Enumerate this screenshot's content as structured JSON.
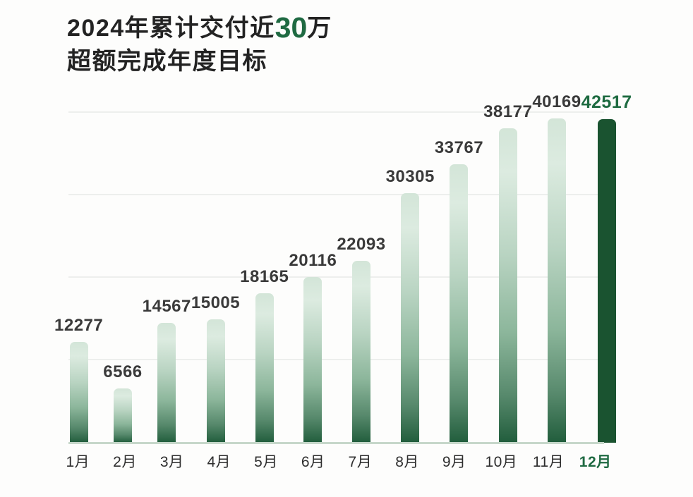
{
  "title": {
    "line1_prefix": "2024年累计交付近",
    "line1_highlight": "30",
    "line1_suffix": "万",
    "line2": "超额完成年度目标"
  },
  "colors": {
    "brand_green": "#1f6a42",
    "highlight_bar": "#1a5330",
    "bar_gradient_top": "#d3e5d8",
    "bar_gradient_bottom": "#215d3c",
    "title_text": "#232323",
    "value_label_text": "#3a3a3a",
    "axis_label_text": "#2e2e2e",
    "gridline": "#edefed",
    "baseline": "#c6d7ca",
    "background": "#fdfdfc"
  },
  "chart_data": {
    "type": "bar",
    "title": "2024年累计交付近30万 超额完成年度目标",
    "categories": [
      "1月",
      "2月",
      "3月",
      "4月",
      "5月",
      "6月",
      "7月",
      "8月",
      "9月",
      "10月",
      "11月",
      "12月"
    ],
    "values": [
      12277,
      6566,
      14567,
      15005,
      18165,
      20116,
      22093,
      30305,
      33767,
      38177,
      40169,
      42517
    ],
    "data_labels_shown": true,
    "highlight_index": 11,
    "xlabel": "",
    "ylabel": "",
    "ylim": [
      0,
      42517
    ],
    "gridlines": [
      10000,
      20000,
      30000,
      40000
    ],
    "grid": true,
    "legend": false,
    "y_axis_ticks_shown": false
  }
}
